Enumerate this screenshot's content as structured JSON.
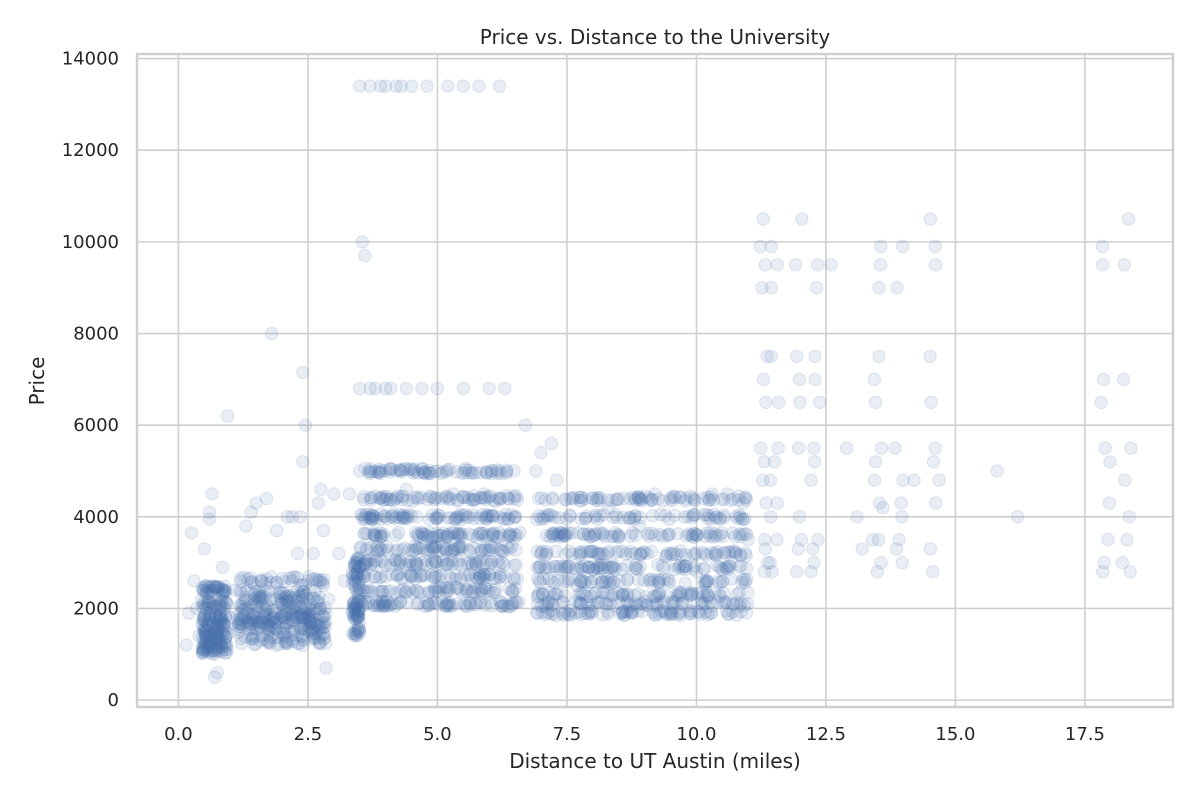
{
  "chart_data": {
    "type": "scatter",
    "title": "Price vs. Distance to the University",
    "xlabel": "Distance to UT Austin (miles)",
    "ylabel": "Price",
    "xlim": [
      -0.8,
      19.2
    ],
    "ylim": [
      -150,
      14100
    ],
    "xticks": [
      "0.0",
      "2.5",
      "5.0",
      "7.5",
      "10.0",
      "12.5",
      "15.0",
      "17.5"
    ],
    "xtick_values": [
      0,
      2.5,
      5,
      7.5,
      10,
      12.5,
      15,
      17.5
    ],
    "yticks": [
      "0",
      "2000",
      "4000",
      "6000",
      "8000",
      "10000",
      "12000",
      "14000"
    ],
    "ytick_values": [
      0,
      2000,
      4000,
      6000,
      8000,
      10000,
      12000,
      14000
    ],
    "grid": true,
    "marker_color": "#4c72b0",
    "marker_alpha": 0.12,
    "series": [
      {
        "points": [
          [
            0.15,
            1200
          ],
          [
            0.2,
            1900
          ],
          [
            0.25,
            3650
          ],
          [
            0.3,
            2600
          ],
          [
            0.35,
            2000
          ],
          [
            0.4,
            1400
          ],
          [
            0.45,
            2200
          ],
          [
            0.5,
            1100
          ],
          [
            0.5,
            3300
          ],
          [
            0.55,
            1500
          ],
          [
            0.55,
            2500
          ],
          [
            0.6,
            4100
          ],
          [
            0.6,
            3950
          ],
          [
            0.65,
            4500
          ],
          [
            0.65,
            1300
          ],
          [
            0.7,
            1000
          ],
          [
            0.7,
            500
          ],
          [
            0.75,
            600
          ],
          [
            0.75,
            1600
          ],
          [
            0.8,
            2000
          ],
          [
            0.85,
            2900
          ],
          [
            0.9,
            1200
          ],
          [
            0.95,
            6200
          ],
          [
            1.0,
            1800
          ],
          [
            1.1,
            2400
          ],
          [
            1.2,
            1900
          ],
          [
            1.3,
            3800
          ],
          [
            1.4,
            4100
          ],
          [
            1.5,
            4300
          ],
          [
            1.6,
            1700
          ],
          [
            1.7,
            4400
          ],
          [
            1.8,
            8000
          ],
          [
            1.9,
            3700
          ],
          [
            2.0,
            2200
          ],
          [
            2.1,
            4000
          ],
          [
            2.2,
            4000
          ],
          [
            2.3,
            3200
          ],
          [
            2.35,
            4000
          ],
          [
            2.4,
            7150
          ],
          [
            2.45,
            6000
          ],
          [
            2.4,
            5200
          ],
          [
            2.5,
            1600
          ],
          [
            2.6,
            3200
          ],
          [
            2.7,
            4300
          ],
          [
            2.75,
            4600
          ],
          [
            2.8,
            3700
          ],
          [
            2.85,
            700
          ],
          [
            2.9,
            2200
          ],
          [
            3.0,
            4500
          ],
          [
            3.1,
            3200
          ],
          [
            3.2,
            2600
          ],
          [
            3.3,
            4500
          ],
          [
            3.4,
            3000
          ],
          [
            3.45,
            1800
          ],
          [
            3.5,
            5000
          ],
          [
            3.55,
            10000
          ],
          [
            3.6,
            9700
          ],
          [
            3.7,
            6800
          ],
          [
            3.8,
            5000
          ],
          [
            3.9,
            4400
          ],
          [
            4.0,
            6800
          ],
          [
            4.2,
            5000
          ],
          [
            4.4,
            4600
          ],
          [
            4.6,
            4000
          ],
          [
            4.8,
            3600
          ],
          [
            5.0,
            5000
          ],
          [
            5.3,
            4500
          ],
          [
            5.6,
            4000
          ],
          [
            5.9,
            4500
          ],
          [
            6.2,
            5000
          ],
          [
            6.5,
            4000
          ],
          [
            6.7,
            6000
          ],
          [
            6.9,
            5000
          ],
          [
            7.0,
            5400
          ],
          [
            7.2,
            5600
          ],
          [
            7.3,
            4800
          ],
          [
            7.5,
            2900
          ],
          [
            7.7,
            2500
          ],
          [
            8.0,
            4400
          ],
          [
            8.3,
            4200
          ],
          [
            8.6,
            4400
          ],
          [
            8.9,
            3800
          ],
          [
            9.2,
            4500
          ],
          [
            9.5,
            3200
          ],
          [
            9.8,
            4400
          ],
          [
            10.0,
            2800
          ],
          [
            10.3,
            4500
          ],
          [
            10.6,
            4500
          ],
          [
            10.9,
            4300
          ],
          [
            11.0,
            3500
          ],
          [
            12.6,
            9500
          ],
          [
            12.9,
            5500
          ],
          [
            13.1,
            4000
          ],
          [
            13.2,
            3300
          ],
          [
            13.4,
            3500
          ],
          [
            13.6,
            4200
          ],
          [
            14.2,
            4800
          ],
          [
            15.8,
            5000
          ],
          [
            16.2,
            4000
          ]
        ]
      }
    ]
  }
}
